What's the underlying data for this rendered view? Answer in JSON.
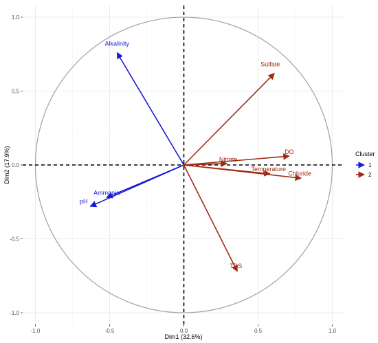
{
  "chart_data": {
    "type": "pca-biplot",
    "xlabel": "Dim1 (32.6%)",
    "ylabel": "Dim2 (17.9%)",
    "xlim": [
      -1.0,
      1.0
    ],
    "ylim": [
      -1.0,
      1.0
    ],
    "x_ticks": [
      "-1.0",
      "-0.5",
      "0.0",
      "0.5",
      "1.0"
    ],
    "y_ticks": [
      "1.0",
      "0.5",
      "0.0",
      "-0.5",
      "-1.0"
    ],
    "grid": true,
    "correlation_circle": true,
    "legend": {
      "title": "Cluster",
      "position": "right",
      "entries": [
        {
          "label": "1",
          "color": "#1a1ad6"
        },
        {
          "label": "2",
          "color": "#a02a10"
        }
      ]
    },
    "variables": [
      {
        "name": "Alkalinity",
        "x": -0.45,
        "y": 0.76,
        "cluster": "1"
      },
      {
        "name": "Ammonia",
        "x": -0.52,
        "y": -0.22,
        "cluster": "1"
      },
      {
        "name": "pH",
        "x": -0.63,
        "y": -0.28,
        "cluster": "1"
      },
      {
        "name": "Sulfate",
        "x": 0.61,
        "y": 0.62,
        "cluster": "2"
      },
      {
        "name": "DO",
        "x": 0.71,
        "y": 0.06,
        "cluster": "2"
      },
      {
        "name": "Nitrate",
        "x": 0.29,
        "y": 0.01,
        "cluster": "2"
      },
      {
        "name": "Temperature",
        "x": 0.58,
        "y": -0.06,
        "cluster": "2"
      },
      {
        "name": "Chloride",
        "x": 0.79,
        "y": -0.09,
        "cluster": "2"
      },
      {
        "name": "TDS",
        "x": 0.36,
        "y": -0.72,
        "cluster": "2"
      }
    ]
  }
}
